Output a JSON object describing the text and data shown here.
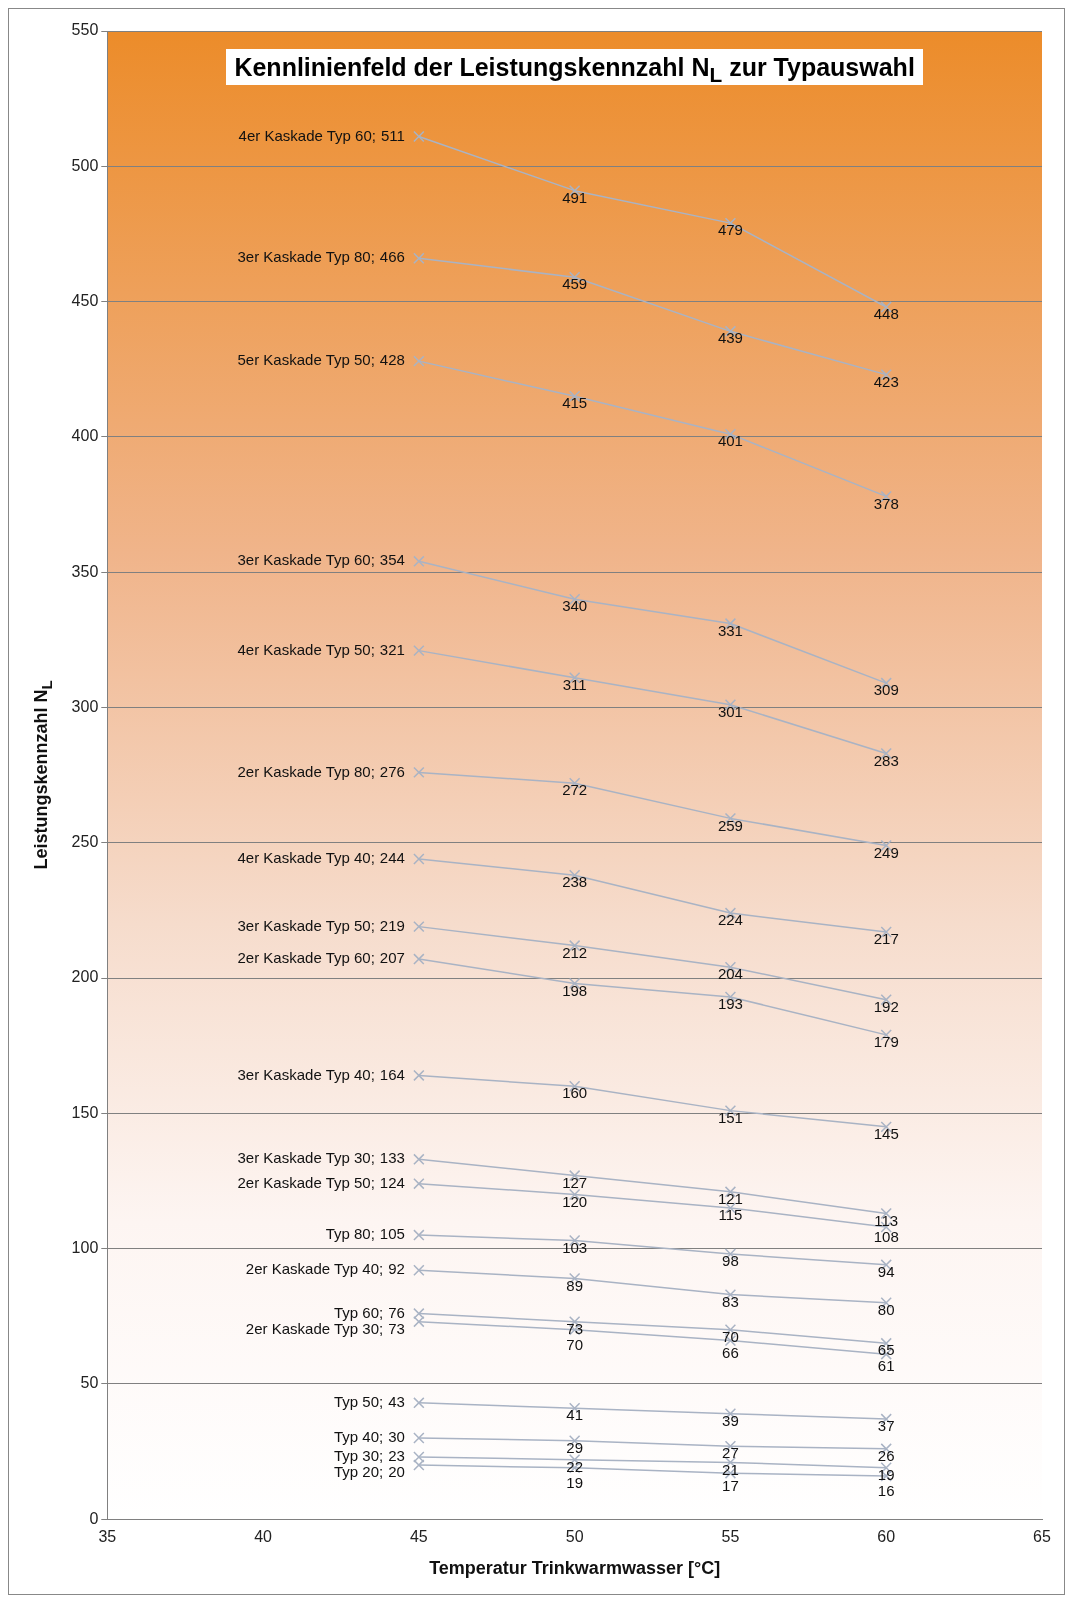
{
  "chart_data": {
    "type": "line",
    "title": "Kennlinienfeld der Leistungskennzahl N$_{L}$ zur Typauswahl",
    "xlabel": "Temperatur Trinkwarmwasser [°C]",
    "ylabel": "Leistungskennzahl N$_{L}$",
    "x": [
      45,
      50,
      55,
      60
    ],
    "xlim": [
      35,
      65
    ],
    "xticks": [
      35,
      40,
      45,
      50,
      55,
      60,
      65
    ],
    "ylim": [
      0,
      550
    ],
    "yticks": [
      0,
      50,
      100,
      150,
      200,
      250,
      300,
      350,
      400,
      450,
      500,
      550
    ],
    "grid": "y",
    "legend": false,
    "marker": "cross",
    "line_style": "solid",
    "data_labels": true,
    "series": [
      {
        "name": "4er Kaskade Typ 60;",
        "color": "#a9b3c4",
        "values": [
          511,
          491,
          479,
          448
        ]
      },
      {
        "name": "3er Kaskade Typ 80;",
        "color": "#a9b3c4",
        "values": [
          466,
          459,
          439,
          423
        ]
      },
      {
        "name": "5er Kaskade Typ 50;",
        "color": "#a9b3c4",
        "values": [
          428,
          415,
          401,
          378
        ]
      },
      {
        "name": "3er Kaskade Typ 60;",
        "color": "#a9b3c4",
        "values": [
          354,
          340,
          331,
          309
        ]
      },
      {
        "name": "4er Kaskade Typ 50;",
        "color": "#a9b3c4",
        "values": [
          321,
          311,
          301,
          283
        ]
      },
      {
        "name": "2er Kaskade Typ 80;",
        "color": "#a9b3c4",
        "values": [
          276,
          272,
          259,
          249
        ]
      },
      {
        "name": "4er Kaskade Typ 40;",
        "color": "#a9b3c4",
        "values": [
          244,
          238,
          224,
          217
        ]
      },
      {
        "name": "3er Kaskade Typ 50;",
        "color": "#a9b3c4",
        "values": [
          219,
          212,
          204,
          192
        ]
      },
      {
        "name": "2er Kaskade Typ 60;",
        "color": "#a9b3c4",
        "values": [
          207,
          198,
          193,
          179
        ]
      },
      {
        "name": "3er Kaskade Typ 40;",
        "color": "#a9b3c4",
        "values": [
          164,
          160,
          151,
          145
        ]
      },
      {
        "name": "3er Kaskade Typ 30;",
        "color": "#a9b3c4",
        "values": [
          133,
          127,
          121,
          113
        ]
      },
      {
        "name": "2er Kaskade Typ 50;",
        "color": "#a9b3c4",
        "values": [
          124,
          120,
          115,
          108
        ]
      },
      {
        "name": "Typ 80;",
        "color": "#a9b3c4",
        "values": [
          105,
          103,
          98,
          94
        ]
      },
      {
        "name": "2er Kaskade Typ 40;",
        "color": "#a9b3c4",
        "values": [
          92,
          89,
          83,
          80
        ]
      },
      {
        "name": "Typ 60;",
        "color": "#a9b3c4",
        "values": [
          76,
          73,
          70,
          65
        ]
      },
      {
        "name": "2er Kaskade Typ 30;",
        "color": "#a9b3c4",
        "values": [
          73,
          70,
          66,
          61
        ]
      },
      {
        "name": "Typ 50;",
        "color": "#a9b3c4",
        "values": [
          43,
          41,
          39,
          37
        ]
      },
      {
        "name": "Typ 40;",
        "color": "#a9b3c4",
        "values": [
          30,
          29,
          27,
          26
        ]
      },
      {
        "name": "Typ 30;",
        "color": "#a9b3c4",
        "values": [
          23,
          22,
          21,
          19
        ]
      },
      {
        "name": "Typ 20;",
        "color": "#a9b3c4",
        "values": [
          20,
          19,
          17,
          16
        ]
      }
    ]
  }
}
